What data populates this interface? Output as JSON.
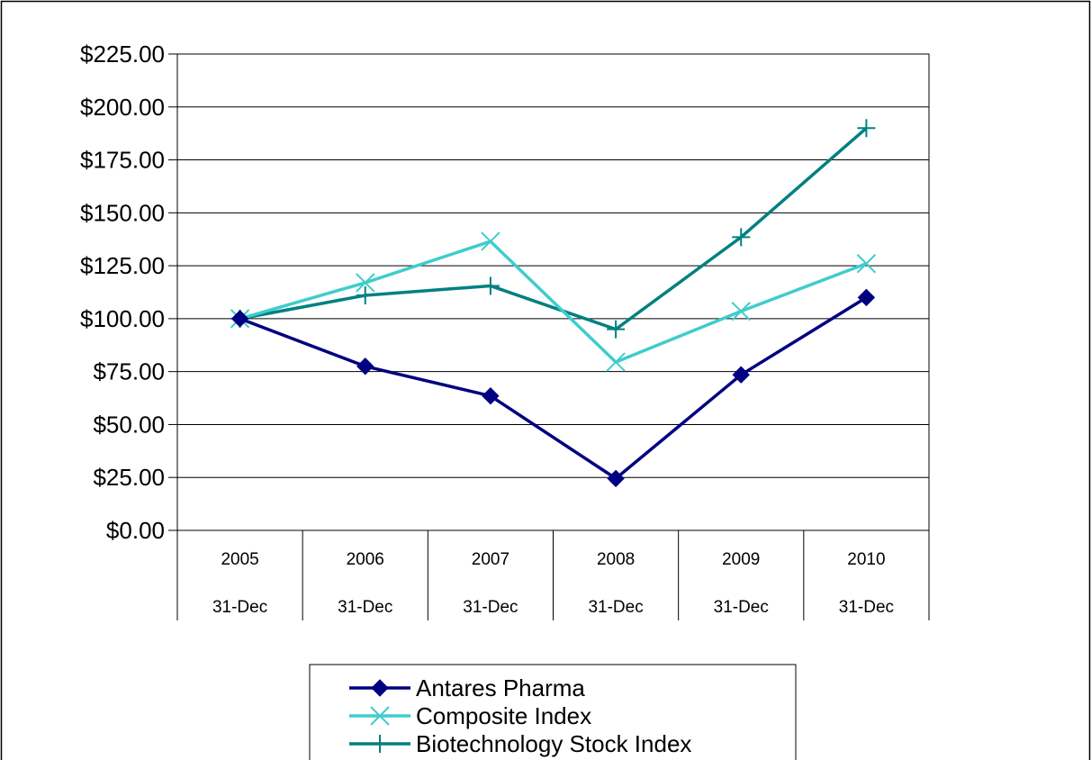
{
  "chart_data": {
    "type": "line",
    "title": "",
    "xlabel": "",
    "ylabel": "",
    "categories": [
      "2005",
      "2006",
      "2007",
      "2008",
      "2009",
      "2010"
    ],
    "category_sublabels": [
      "31-Dec",
      "31-Dec",
      "31-Dec",
      "31-Dec",
      "31-Dec",
      "31-Dec"
    ],
    "ylim": [
      0,
      225
    ],
    "y_ticks": [
      {
        "value": 0,
        "label": "$0.00"
      },
      {
        "value": 25,
        "label": "$25.00"
      },
      {
        "value": 50,
        "label": "$50.00"
      },
      {
        "value": 75,
        "label": "$75.00"
      },
      {
        "value": 100,
        "label": "$100.00"
      },
      {
        "value": 125,
        "label": "$125.00"
      },
      {
        "value": 150,
        "label": "$150.00"
      },
      {
        "value": 175,
        "label": "$175.00"
      },
      {
        "value": 200,
        "label": "$200.00"
      },
      {
        "value": 225,
        "label": "$225.00"
      }
    ],
    "grid": true,
    "legend_position": "bottom",
    "series": [
      {
        "name": "Antares Pharma",
        "values": [
          100,
          77.5,
          63.5,
          24.5,
          73.5,
          110
        ],
        "color": "#000080",
        "marker": "diamond"
      },
      {
        "name": "Composite Index",
        "values": [
          100,
          117,
          136.5,
          79.5,
          103.5,
          126
        ],
        "color": "#40CCCC",
        "marker": "x"
      },
      {
        "name": "Biotechnology Stock Index",
        "values": [
          100,
          111,
          115.5,
          95,
          138.5,
          190
        ],
        "color": "#008080",
        "marker": "plus"
      }
    ]
  }
}
